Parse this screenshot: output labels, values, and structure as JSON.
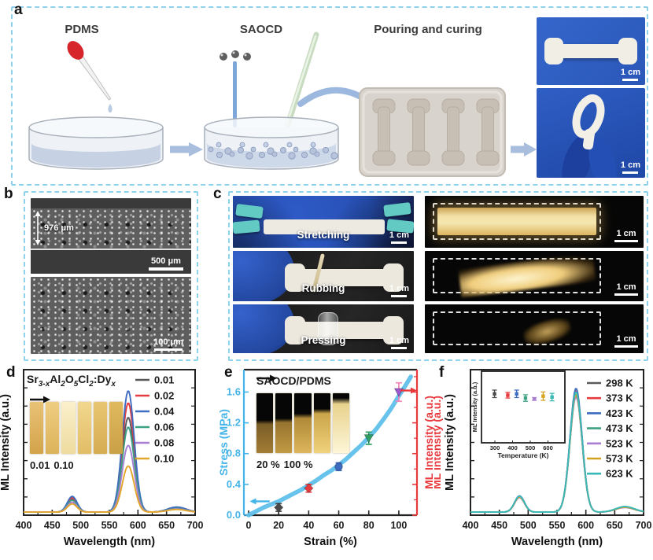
{
  "figure": {
    "panels": {
      "a": {
        "label": "a",
        "pdms": "PDMS",
        "saocd": "SAOCD",
        "pouring": "Pouring and curing",
        "photo_top_scale": "1 cm",
        "photo_bottom_scale": "1 cm"
      },
      "b": {
        "label": "b",
        "thickness": "976 μm",
        "scale_top": "500 μm",
        "scale_bottom": "100 μm"
      },
      "c": {
        "label": "c",
        "rows": [
          {
            "action": "Stretching",
            "scale": "1 cm",
            "ml_scale": "1 cm"
          },
          {
            "action": "Rubbing",
            "scale": "1 cm",
            "ml_scale": "1 cm"
          },
          {
            "action": "Pressing",
            "scale": "1 cm",
            "ml_scale": "1 cm"
          }
        ]
      },
      "d": {
        "label": "d"
      },
      "e": {
        "label": "e"
      },
      "f": {
        "label": "f"
      }
    },
    "colors": {
      "panel_border": "#8fd2ec",
      "glove_blue": "#2b55c4",
      "ml_gold": "#f0d48a"
    }
  },
  "chart_data": [
    {
      "id": "d",
      "type": "line",
      "title": "Sr3-xAl2O5Cl2:Dyx",
      "formula_parts": [
        [
          "Sr",
          0
        ],
        [
          "3-x",
          1
        ],
        [
          "Al",
          0
        ],
        [
          "2",
          1
        ],
        [
          "O",
          0
        ],
        [
          "5",
          1
        ],
        [
          "Cl",
          0
        ],
        [
          "2",
          1
        ],
        [
          ":Dy",
          0
        ],
        [
          "x",
          1
        ]
      ],
      "xlabel": "Wavelength (nm)",
      "ylabel": "ML Intensity (a.u.)",
      "xlim": [
        400,
        700
      ],
      "xticks": [
        400,
        450,
        500,
        550,
        600,
        650,
        700
      ],
      "peaks_nm": [
        485,
        583,
        668
      ],
      "peak_sigma": [
        8.5,
        10.5,
        16
      ],
      "series": [
        {
          "name": "0.01",
          "color": "#58595b",
          "peak_heights": [
            0.105,
            0.78,
            0.034
          ]
        },
        {
          "name": "0.02",
          "color": "#e63b3f",
          "peak_heights": [
            0.118,
            0.9,
            0.038
          ]
        },
        {
          "name": "0.04",
          "color": "#3d6cc0",
          "peak_heights": [
            0.13,
            1.0,
            0.042
          ]
        },
        {
          "name": "0.06",
          "color": "#3da183",
          "peak_heights": [
            0.098,
            0.7,
            0.03
          ]
        },
        {
          "name": "0.08",
          "color": "#a87fd2",
          "peak_heights": [
            0.082,
            0.55,
            0.026
          ]
        },
        {
          "name": "0.10",
          "color": "#e2a62b",
          "peak_heights": [
            0.068,
            0.38,
            0.022
          ]
        }
      ],
      "inset": {
        "caption_from": "0.01",
        "caption_to": "0.10"
      }
    },
    {
      "id": "e",
      "type": "line+scatter",
      "title": "SAOCD/PDMS",
      "xlabel": "Strain (%)",
      "ylabel_left": "Stress (MPa)",
      "ylabel_right": "ML Intensity (a.u.)",
      "xlim": [
        0,
        110
      ],
      "ylim": [
        0,
        1.85
      ],
      "xticks": [
        0,
        20,
        40,
        60,
        80,
        100
      ],
      "yticks": [
        0.0,
        0.4,
        0.8,
        1.2,
        1.6
      ],
      "axis_colors": {
        "left": "#45b4e8",
        "right": "#e8393d",
        "frame": "#222222"
      },
      "stress_curve": {
        "color": "#5fc0ea",
        "points": [
          [
            0,
            0
          ],
          [
            5,
            0.05
          ],
          [
            10,
            0.1
          ],
          [
            15,
            0.14
          ],
          [
            20,
            0.18
          ],
          [
            25,
            0.23
          ],
          [
            30,
            0.28
          ],
          [
            35,
            0.33
          ],
          [
            40,
            0.39
          ],
          [
            45,
            0.45
          ],
          [
            50,
            0.52
          ],
          [
            55,
            0.58
          ],
          [
            60,
            0.65
          ],
          [
            65,
            0.73
          ],
          [
            70,
            0.82
          ],
          [
            75,
            0.91
          ],
          [
            80,
            1.01
          ],
          [
            85,
            1.12
          ],
          [
            90,
            1.25
          ],
          [
            95,
            1.39
          ],
          [
            100,
            1.55
          ],
          [
            104,
            1.67
          ],
          [
            108,
            1.8
          ]
        ]
      },
      "ml_points": [
        {
          "strain": 20,
          "value": 0.1,
          "err": 0.05,
          "color": "#4a4a4a",
          "marker": "diamond"
        },
        {
          "strain": 40,
          "value": 0.35,
          "err": 0.05,
          "color": "#e63b3f",
          "marker": "diamond"
        },
        {
          "strain": 60,
          "value": 0.63,
          "err": 0.05,
          "color": "#3d6cc0",
          "marker": "circle"
        },
        {
          "strain": 80,
          "value": 1.0,
          "err": 0.08,
          "color": "#2f9e62",
          "marker": "triangle-down"
        },
        {
          "strain": 100,
          "value": 1.6,
          "err": 0.12,
          "color": "#9b59d0",
          "err_color": "#ef86b8",
          "marker": "triangle-down"
        }
      ],
      "inset": {
        "caption_from": "20 %",
        "caption_to": "100 %"
      }
    },
    {
      "id": "f",
      "type": "line",
      "xlabel": "Wavelength (nm)",
      "ylabel": "ML Intensity (a.u.)",
      "ylabel_left_red": "ML Intensity (a.u.)",
      "xlim": [
        400,
        700
      ],
      "xticks": [
        400,
        450,
        500,
        550,
        600,
        650,
        700
      ],
      "peaks_nm": [
        485,
        583,
        668
      ],
      "peak_sigma": [
        8.5,
        10.5,
        16
      ],
      "series": [
        {
          "name": "298 K",
          "color": "#58595b",
          "peak_heights": [
            0.128,
            0.97,
            0.04
          ]
        },
        {
          "name": "373 K",
          "color": "#e63b3f",
          "peak_heights": [
            0.13,
            1.0,
            0.042
          ]
        },
        {
          "name": "423 K",
          "color": "#3d6cc0",
          "peak_heights": [
            0.134,
            1.02,
            0.044
          ]
        },
        {
          "name": "473 K",
          "color": "#3da183",
          "peak_heights": [
            0.124,
            0.96,
            0.04
          ]
        },
        {
          "name": "523 K",
          "color": "#a87fd2",
          "peak_heights": [
            0.12,
            0.95,
            0.038
          ]
        },
        {
          "name": "573 K",
          "color": "#d4a21c",
          "peak_heights": [
            0.126,
            0.97,
            0.041
          ]
        },
        {
          "name": "623 K",
          "color": "#38b8b6",
          "peak_heights": [
            0.132,
            0.99,
            0.046
          ]
        }
      ],
      "inset": {
        "xlabel": "Temperature (K)",
        "ylabel": "ML Intensity (a.u.)",
        "xticks": [
          300,
          400,
          500,
          600
        ],
        "xlim": [
          260,
          660
        ],
        "ylim": [
          0,
          1.3
        ],
        "points": [
          {
            "T": 298,
            "value": 0.95,
            "err": 0.08,
            "color": "#4a4a4a"
          },
          {
            "T": 373,
            "value": 0.92,
            "err": 0.06,
            "color": "#e63b3f"
          },
          {
            "T": 423,
            "value": 0.95,
            "err": 0.08,
            "color": "#3d6cc0"
          },
          {
            "T": 473,
            "value": 0.86,
            "err": 0.07,
            "color": "#3da183"
          },
          {
            "T": 523,
            "value": 0.84,
            "err": 0.03,
            "color": "#a87fd2"
          },
          {
            "T": 573,
            "value": 0.9,
            "err": 0.09,
            "color": "#d4a21c"
          },
          {
            "T": 623,
            "value": 0.88,
            "err": 0.08,
            "color": "#38b8b6"
          }
        ]
      }
    }
  ]
}
